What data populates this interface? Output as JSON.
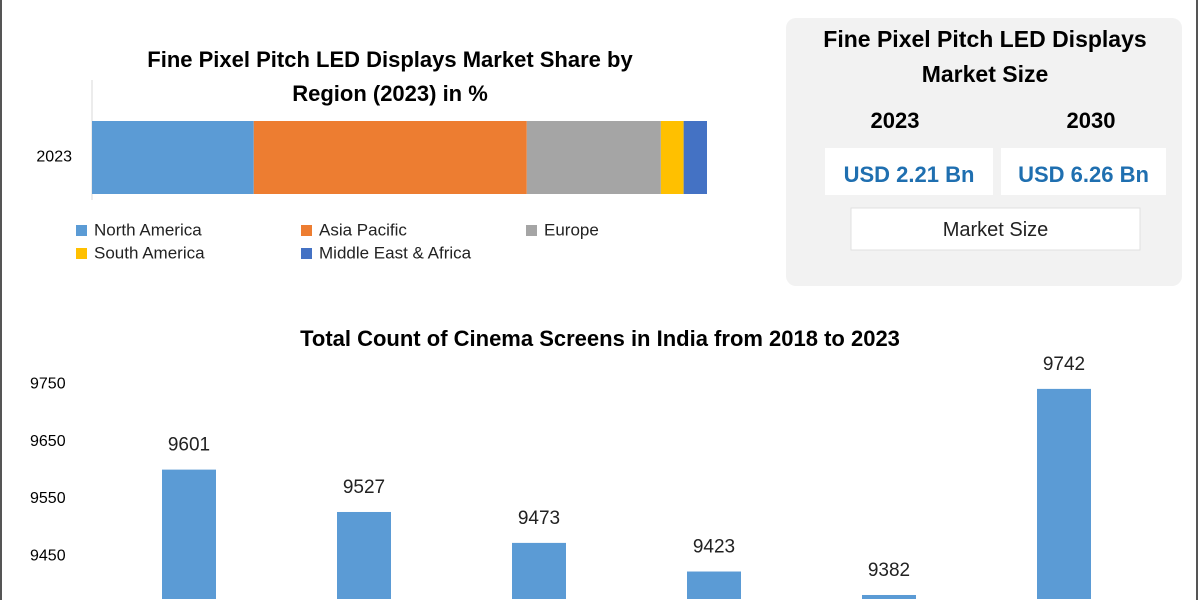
{
  "chart_data": [
    {
      "type": "stacked_bar",
      "orientation": "horizontal",
      "title": "Fine Pixel Pitch LED Displays Market Share by\nRegion (2023) in %",
      "categories": [
        "2023"
      ],
      "xlim": [
        0,
        100
      ],
      "legend": "bottom",
      "series": [
        {
          "name": "North America",
          "color": "#5b9bd5",
          "values": [
            26.3
          ]
        },
        {
          "name": "Asia Pacific",
          "color": "#ed7d31",
          "values": [
            44.4
          ]
        },
        {
          "name": "Europe",
          "color": "#a5a5a5",
          "values": [
            21.8
          ]
        },
        {
          "name": "South America",
          "color": "#ffc000",
          "values": [
            3.7
          ]
        },
        {
          "name": "Middle East & Africa",
          "color": "#4472c4",
          "values": [
            3.8
          ]
        }
      ]
    },
    {
      "type": "bar",
      "title": "Total Count of Cinema Screens in India from 2018 to 2023",
      "categories": [
        null,
        null,
        null,
        null,
        null,
        null
      ],
      "values": [
        9601,
        9527,
        9473,
        9423,
        9382,
        9742
      ],
      "color": "#5b9bd5",
      "ylim": [
        9375,
        9775
      ],
      "yticks": [
        9450,
        9550,
        9650,
        9750
      ],
      "grid": false
    }
  ],
  "market_size": {
    "title": "Fine Pixel Pitch LED Displays\nMarket Size",
    "years": [
      "2023",
      "2030"
    ],
    "values": [
      "USD 2.21 Bn",
      "USD 6.26 Bn"
    ],
    "label": "Market Size"
  }
}
